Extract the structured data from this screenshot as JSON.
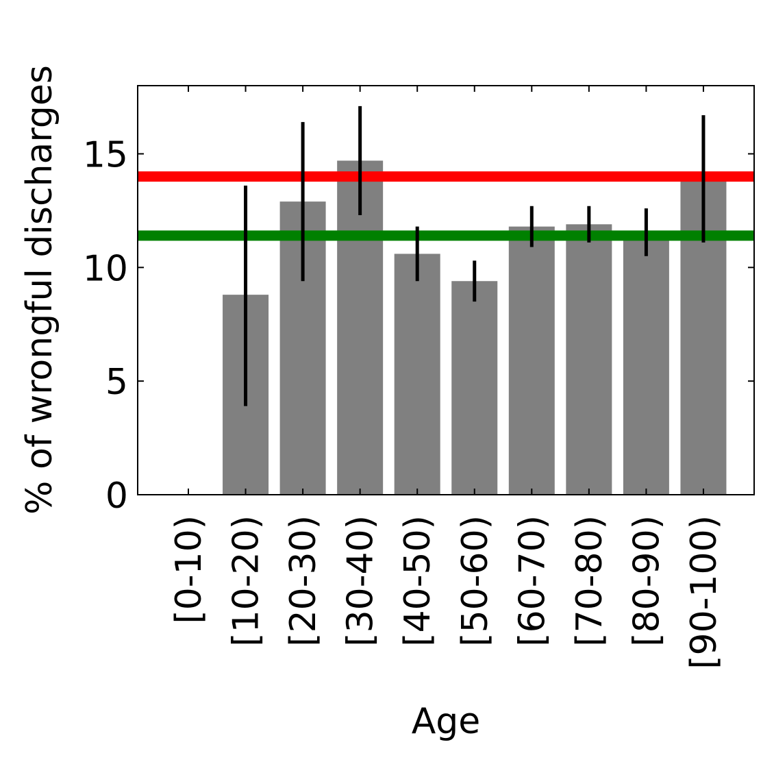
{
  "chart_data": {
    "type": "bar",
    "title": "",
    "xlabel": "Age",
    "ylabel": "% of wrongful discharges",
    "categories": [
      "[0-10)",
      "[10-20)",
      "[20-30)",
      "[30-40)",
      "[40-50)",
      "[50-60)",
      "[60-70)",
      "[70-80)",
      "[80-90)",
      "[90-100)"
    ],
    "values": [
      null,
      8.8,
      12.9,
      14.7,
      10.6,
      9.4,
      11.8,
      11.9,
      11.4,
      13.8
    ],
    "error_low": [
      null,
      3.9,
      9.4,
      12.3,
      9.4,
      8.5,
      10.9,
      11.1,
      10.5,
      11.1
    ],
    "error_high": [
      null,
      13.6,
      16.4,
      17.1,
      11.8,
      10.3,
      12.7,
      12.7,
      12.6,
      16.7
    ],
    "bar_color": "#808080",
    "error_color": "#000000",
    "reference_lines": [
      {
        "value": 14.0,
        "color": "#ff0000"
      },
      {
        "value": 11.4,
        "color": "#008000"
      }
    ],
    "ylim": [
      0,
      18
    ],
    "yticks": [
      0,
      5,
      10,
      15
    ],
    "ytick_labels": [
      "0",
      "5",
      "10",
      "15"
    ],
    "grid": false,
    "legend": "none"
  }
}
